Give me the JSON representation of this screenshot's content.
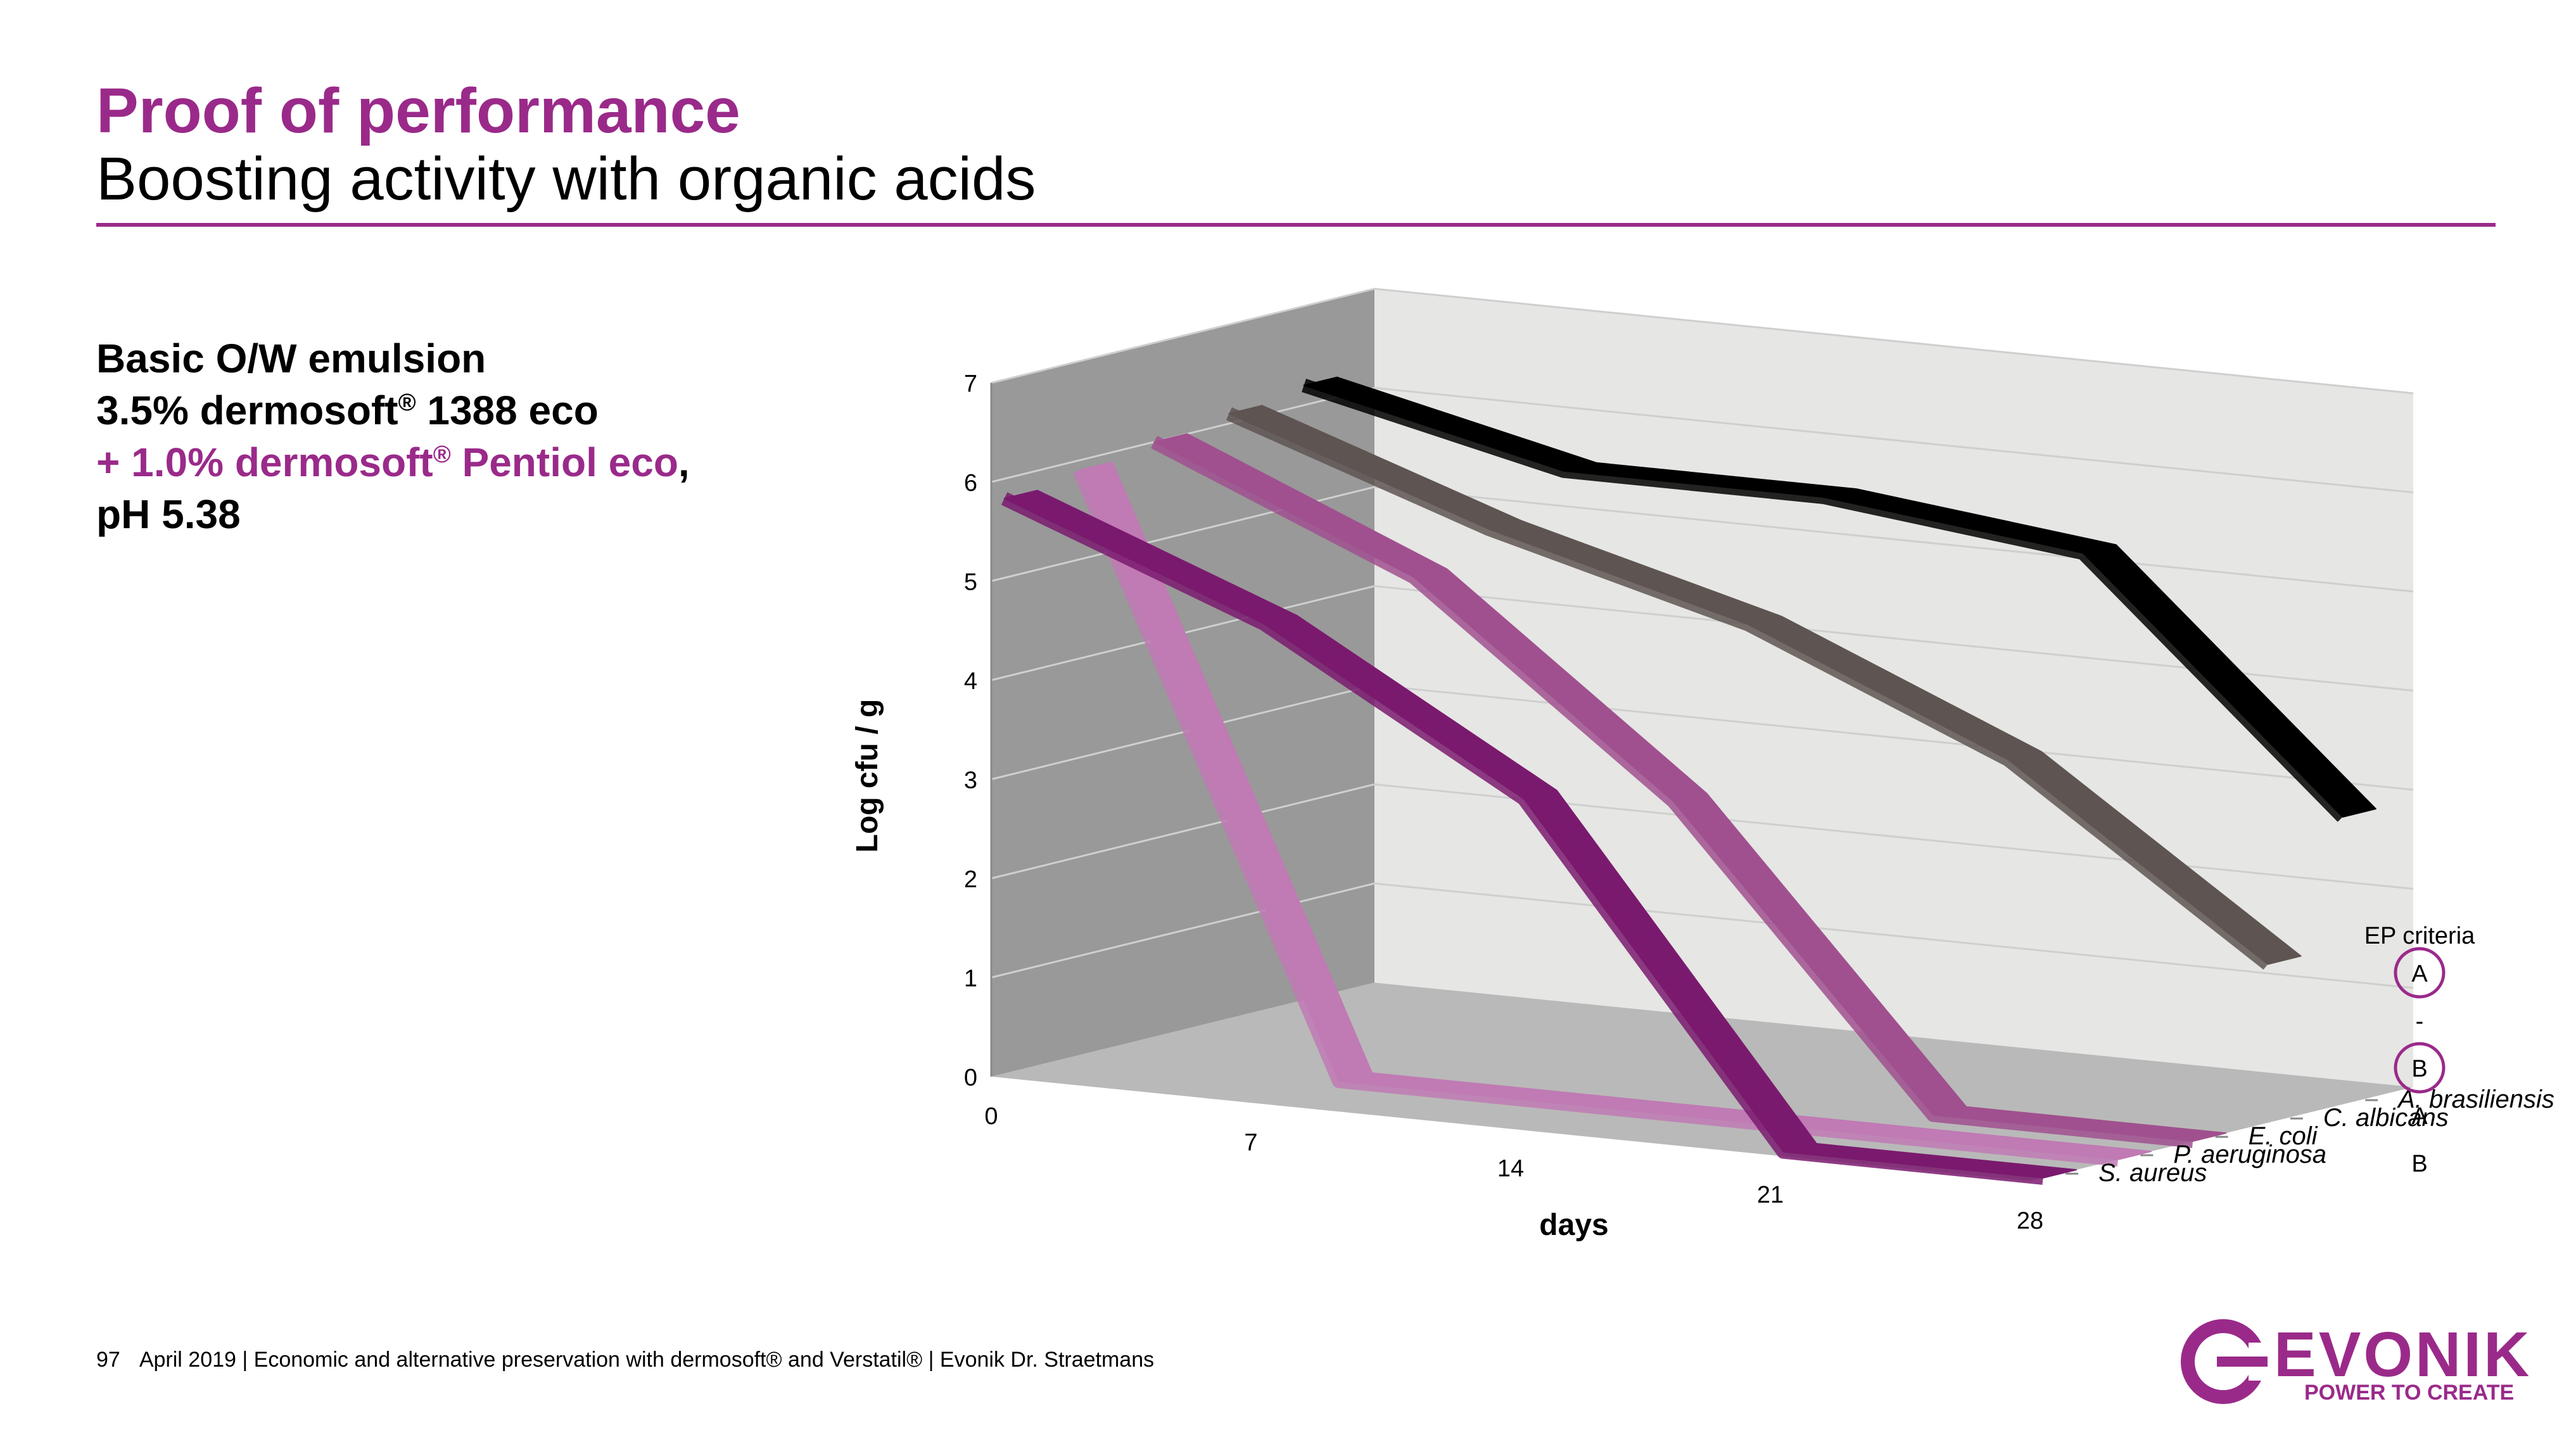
{
  "slide": {
    "title": "Proof of performance",
    "subtitle": "Boosting activity with organic acids",
    "formulation": {
      "line1": "Basic O/W emulsion",
      "line2_prefix": "3.5% dermosoft",
      "line2_sup": "®",
      "line2_suffix": " 1388 eco",
      "line3_prefix": "+ 1.0% dermosoft",
      "line3_sup": "®",
      "line3_suffix": " Pentiol eco",
      "line3_comma": ",",
      "line4": "pH 5.38"
    },
    "footer": {
      "page": "97",
      "text": "April 2019  |  Economic and alternative preservation with dermosoft® and Verstatil®  |  Evonik Dr. Straetmans"
    },
    "logo": {
      "word": "EVONIK",
      "tagline": "POWER TO CREATE"
    },
    "colors": {
      "accent": "#9a2a8a"
    }
  },
  "chart_data": {
    "type": "line",
    "style": "3d",
    "xlabel": "days",
    "ylabel": "Log cfu / g",
    "x": [
      0,
      7,
      14,
      21,
      28
    ],
    "x_ticks": [
      "0",
      "7",
      "14",
      "21",
      "28"
    ],
    "y_ticks": [
      "0",
      "1",
      "2",
      "3",
      "4",
      "5",
      "6",
      "7"
    ],
    "ylim": [
      0,
      7
    ],
    "series": [
      {
        "name": "S. aureus",
        "color": "#7a1a6e",
        "values": [
          5.8,
          4.8,
          3.3,
          0.0,
          0.0
        ]
      },
      {
        "name": "P. aeruginosa",
        "color": "#c07ab4",
        "values": [
          5.9,
          0.0,
          0.0,
          0.0,
          0.0
        ]
      },
      {
        "name": "E. coli",
        "color": "#a0508f",
        "values": [
          6.0,
          4.9,
          2.9,
          0.0,
          0.0
        ]
      },
      {
        "name": "C. albicans",
        "color": "#5e5552",
        "values": [
          6.1,
          5.2,
          4.5,
          3.4,
          1.6
        ]
      },
      {
        "name": "A. brasiliensis",
        "color": "#000000",
        "values": [
          6.2,
          5.6,
          5.6,
          5.3,
          2.9
        ]
      }
    ],
    "ep_criteria": {
      "title": "EP criteria",
      "values": [
        "A",
        "-",
        "B",
        "A",
        "B"
      ],
      "circled": [
        true,
        false,
        true,
        false,
        false
      ]
    }
  }
}
